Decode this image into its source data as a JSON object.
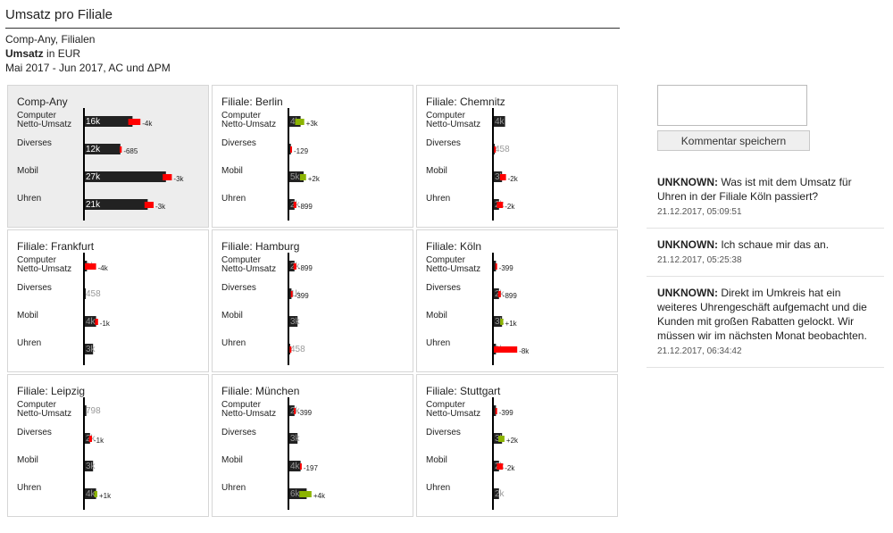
{
  "report": {
    "title": "Umsatz pro Filiale",
    "line1": "Comp-Any, Filialen",
    "line2_bold": "Umsatz",
    "line2_rest": " in EUR",
    "line3": "Mai 2017 - Jun 2017, AC und ΔPM"
  },
  "colors": {
    "actual": "#222222",
    "negative": "#ff0000",
    "positive": "#8cb400",
    "axis": "#000000"
  },
  "chart_data": [
    {
      "type": "bar",
      "title": "Comp-Any",
      "categories": [
        "Computer Netto-Umsatz",
        "Diverses",
        "Mobil",
        "Uhren"
      ],
      "values": [
        16000,
        12000,
        27000,
        21000
      ],
      "value_labels": [
        "16k",
        "12k",
        "27k",
        "21k"
      ],
      "delta": [
        -4000,
        -685,
        -3000,
        -3000
      ],
      "delta_labels": [
        "-4k",
        "-685",
        "-3k",
        "-3k"
      ]
    },
    {
      "type": "bar",
      "title": "Filiale: Berlin",
      "categories": [
        "Computer Netto-Umsatz",
        "Diverses",
        "Mobil",
        "Uhren"
      ],
      "values": [
        4000,
        800,
        5000,
        2000
      ],
      "value_labels": [
        "4k",
        "",
        "5k",
        "2k"
      ],
      "delta": [
        3000,
        -129,
        2000,
        -899
      ],
      "delta_labels": [
        "+3k",
        "-129",
        "+2k",
        "-899"
      ]
    },
    {
      "type": "bar",
      "title": "Filiale: Chemnitz",
      "categories": [
        "Computer Netto-Umsatz",
        "Diverses",
        "Mobil",
        "Uhren"
      ],
      "values": [
        4000,
        458,
        3000,
        2000
      ],
      "value_labels": [
        "4k",
        "458",
        "3k",
        "2k"
      ],
      "delta": [
        0,
        -458,
        -2000,
        -2000
      ],
      "delta_labels": [
        "",
        "",
        "-2k",
        "-2k"
      ]
    },
    {
      "type": "bar",
      "title": "Filiale: Frankfurt",
      "categories": [
        "Computer Netto-Umsatz",
        "Diverses",
        "Mobil",
        "Uhren"
      ],
      "values": [
        1000,
        458,
        4000,
        3000
      ],
      "value_labels": [
        "1k",
        "458",
        "4k",
        "3k"
      ],
      "delta": [
        -4000,
        0,
        -1000,
        0
      ],
      "delta_labels": [
        "-4k",
        "",
        "-1k",
        ""
      ]
    },
    {
      "type": "bar",
      "title": "Filiale: Hamburg",
      "categories": [
        "Computer Netto-Umsatz",
        "Diverses",
        "Mobil",
        "Uhren"
      ],
      "values": [
        2000,
        1000,
        3000,
        458
      ],
      "value_labels": [
        "2k",
        "1k",
        "3k",
        "458"
      ],
      "delta": [
        -899,
        -399,
        0,
        -458
      ],
      "delta_labels": [
        "-899",
        "-399",
        "",
        ""
      ]
    },
    {
      "type": "bar",
      "title": "Filiale: Köln",
      "categories": [
        "Computer Netto-Umsatz",
        "Diverses",
        "Mobil",
        "Uhren"
      ],
      "values": [
        1000,
        2000,
        3000,
        1000
      ],
      "value_labels": [
        "",
        "2k",
        "3k",
        "1k"
      ],
      "delta": [
        -399,
        -899,
        1000,
        -8000
      ],
      "delta_labels": [
        "-399",
        "-899",
        "+1k",
        "-8k"
      ]
    },
    {
      "type": "bar",
      "title": "Filiale: Leipzig",
      "categories": [
        "Computer Netto-Umsatz",
        "Diverses",
        "Mobil",
        "Uhren"
      ],
      "values": [
        798,
        2000,
        3000,
        4000
      ],
      "value_labels": [
        "798",
        "2k",
        "3k",
        "4k"
      ],
      "delta": [
        0,
        -1000,
        0,
        1000
      ],
      "delta_labels": [
        "",
        "-1k",
        "",
        "+1k"
      ]
    },
    {
      "type": "bar",
      "title": "Filiale: München",
      "categories": [
        "Computer Netto-Umsatz",
        "Diverses",
        "Mobil",
        "Uhren"
      ],
      "values": [
        2000,
        3000,
        4000,
        6000
      ],
      "value_labels": [
        "2k",
        "3k",
        "4k",
        "6k"
      ],
      "delta": [
        -399,
        0,
        -197,
        4000
      ],
      "delta_labels": [
        "-399",
        "",
        "-197",
        "+4k"
      ]
    },
    {
      "type": "bar",
      "title": "Filiale: Stuttgart",
      "categories": [
        "Computer Netto-Umsatz",
        "Diverses",
        "Mobil",
        "Uhren"
      ],
      "values": [
        1000,
        3000,
        2000,
        2000
      ],
      "value_labels": [
        "",
        "3k",
        "2k",
        "2k"
      ],
      "delta": [
        -399,
        2000,
        -2000,
        0
      ],
      "delta_labels": [
        "-399",
        "+2k",
        "-2k",
        ""
      ]
    }
  ],
  "comment_box": {
    "value": "",
    "button_label": "Kommentar speichern"
  },
  "comments": [
    {
      "author": "UNKNOWN:",
      "text": " Was ist mit dem Umsatz für Uhren in der Filiale Köln passiert?",
      "time": "21.12.2017, 05:09:51"
    },
    {
      "author": "UNKNOWN:",
      "text": " Ich schaue mir das an.",
      "time": "21.12.2017, 05:25:38"
    },
    {
      "author": "UNKNOWN:",
      "text": " Direkt im Umkreis hat ein weiteres Uhrengeschäft aufgemacht und die Kunden mit großen Rabatten gelockt. Wir müssen wir im nächsten Monat beobachten.",
      "time": "21.12.2017, 06:34:42"
    }
  ]
}
